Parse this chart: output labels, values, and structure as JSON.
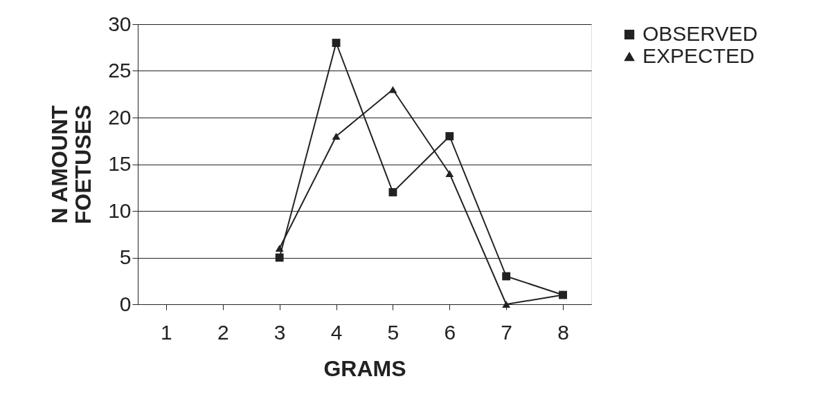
{
  "chart_data": {
    "type": "line",
    "xlabel": "GRAMS",
    "ylabel": "N AMOUNT\nFOETUSES",
    "categories": [
      "1",
      "2",
      "3",
      "4",
      "5",
      "6",
      "7",
      "8"
    ],
    "series": [
      {
        "name": "OBSERVED",
        "color": "#222222",
        "marker": "square",
        "values": [
          null,
          null,
          5,
          28,
          12,
          18,
          3,
          1
        ]
      },
      {
        "name": "EXPECTED",
        "color": "#222222",
        "marker": "triangle",
        "values": [
          null,
          null,
          6,
          18,
          23,
          14,
          0,
          1
        ]
      }
    ],
    "ylim": [
      0,
      30
    ],
    "yticks": [
      0,
      5,
      10,
      15,
      20,
      25,
      30
    ],
    "grid": "y",
    "legend": "right",
    "line_style": "solid"
  }
}
